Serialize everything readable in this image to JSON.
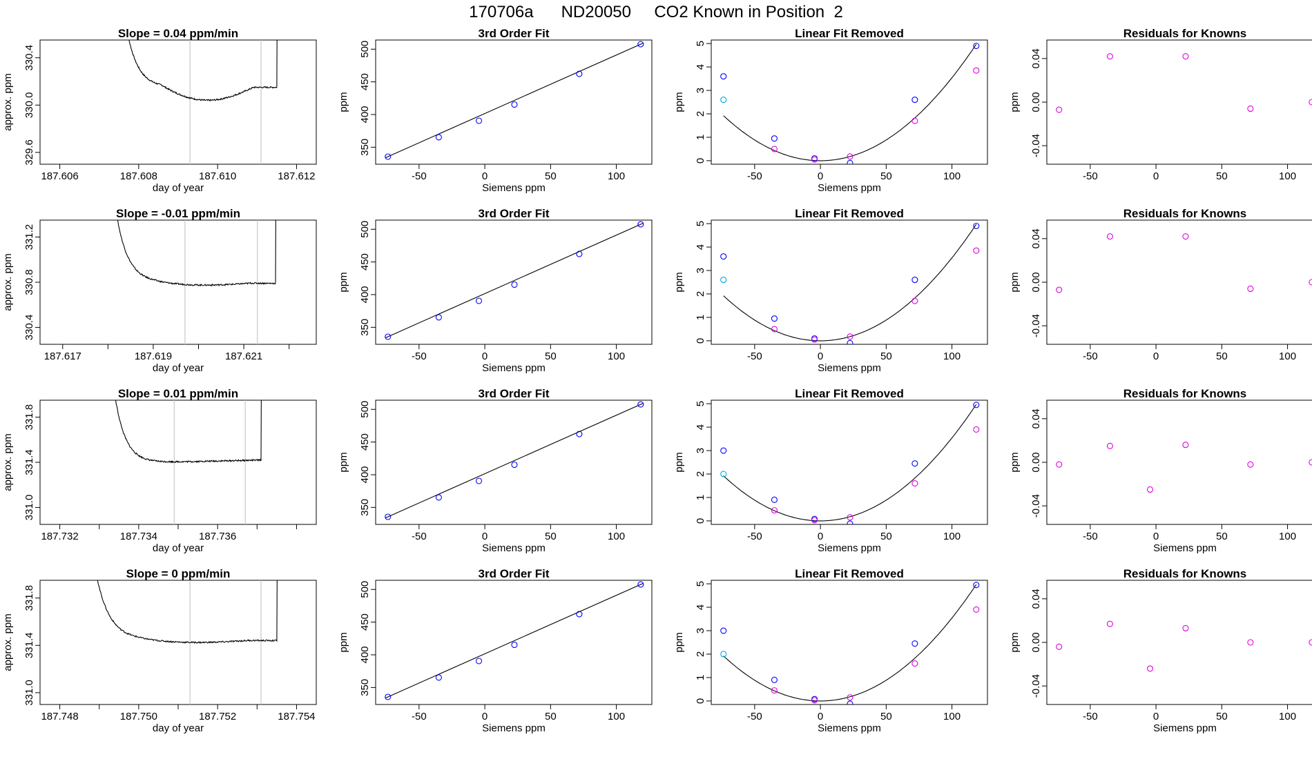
{
  "title": "170706a      ND20050     CO2 Known in Position  2",
  "colors": {
    "axis": "#000000",
    "trace": "#000000",
    "vline": "#c8c8c8",
    "blue": "#0000ff",
    "magenta": "#dd00dd",
    "cyan": "#00a8e0",
    "red": "#ff0000"
  },
  "chart_data": [
    {
      "row": 0,
      "kind": "timeseries",
      "title": "Slope =  0.04  ppm/min",
      "xlabel": "day of year",
      "ylabel": "approx. ppm",
      "xlim": [
        187.6055,
        187.6125
      ],
      "ylim": [
        329.5,
        330.55
      ],
      "xticks": [
        187.606,
        187.608,
        187.61,
        187.612
      ],
      "xtick_labels": [
        "187.606",
        "187.608",
        "187.610",
        "187.612"
      ],
      "yticks": [
        329.6,
        330.0,
        330.4
      ],
      "ytick_labels": [
        "329.6",
        "330.0",
        "330.4"
      ],
      "vlines": [
        187.6093,
        187.6111
      ],
      "trace_start": 187.6076,
      "trace_stop_knee": 187.6115,
      "baseline_start": 330.15,
      "baseline_end": 330.15,
      "dip": 330.04
    },
    {
      "row": 1,
      "kind": "timeseries",
      "title": "Slope =  -0.01  ppm/min",
      "xlabel": "day of year",
      "ylabel": "approx. ppm",
      "xlim": [
        187.6165,
        187.6226
      ],
      "ylim": [
        330.25,
        331.35
      ],
      "xticks": [
        187.617,
        187.618,
        187.619,
        187.62,
        187.621,
        187.622
      ],
      "xtick_labels": [
        "187.617",
        "",
        "187.619",
        "",
        "187.621",
        ""
      ],
      "yticks": [
        330.4,
        330.8,
        331.2
      ],
      "ytick_labels": [
        "330.4",
        "330.8",
        "331.2"
      ],
      "vlines": [
        187.6197,
        187.6213
      ],
      "trace_start": 187.6181,
      "trace_stop_knee": 187.6217,
      "baseline_start": 330.8,
      "baseline_end": 330.79,
      "dip": 330.78
    },
    {
      "row": 2,
      "kind": "timeseries",
      "title": "Slope =  0.01  ppm/min",
      "xlabel": "day of year",
      "ylabel": "approx. ppm",
      "xlim": [
        187.7315,
        187.7385
      ],
      "ylim": [
        330.85,
        331.95
      ],
      "xticks": [
        187.732,
        187.733,
        187.734,
        187.735,
        187.736,
        187.737,
        187.738
      ],
      "xtick_labels": [
        "187.732",
        "",
        "187.734",
        "",
        "187.736",
        "",
        ""
      ],
      "yticks": [
        331.0,
        331.4,
        331.8
      ],
      "ytick_labels": [
        "331.0",
        "331.4",
        "331.8"
      ],
      "vlines": [
        187.7349,
        187.7367
      ],
      "trace_start": 187.7333,
      "trace_stop_knee": 187.7371,
      "baseline_start": 331.39,
      "baseline_end": 331.42,
      "dip": 331.39
    },
    {
      "row": 3,
      "kind": "timeseries",
      "title": "Slope =  0  ppm/min",
      "xlabel": "day of year",
      "ylabel": "approx. ppm",
      "xlim": [
        187.7475,
        187.7545
      ],
      "ylim": [
        330.9,
        331.95
      ],
      "xticks": [
        187.748,
        187.749,
        187.75,
        187.751,
        187.752,
        187.753,
        187.754
      ],
      "xtick_labels": [
        "187.748",
        "",
        "187.750",
        "",
        "187.752",
        "",
        "187.754"
      ],
      "yticks": [
        331.0,
        331.4,
        331.8
      ],
      "ytick_labels": [
        "331.0",
        "331.4",
        "331.8"
      ],
      "vlines": [
        187.7513,
        187.7531
      ],
      "trace_start": 187.7488,
      "trace_stop_knee": 187.7535,
      "baseline_start": 331.45,
      "baseline_end": 331.44,
      "dip": 331.43
    },
    {
      "row": 0,
      "kind": "fit",
      "title": "3rd Order Fit",
      "xlabel": "Siemens ppm",
      "ylabel": "ppm",
      "xlim": [
        -83,
        127
      ],
      "ylim": [
        324,
        514
      ],
      "xticks": [
        -50,
        0,
        50,
        100
      ],
      "yticks": [
        350,
        400,
        450,
        500
      ],
      "x": [
        -73.7,
        -35.0,
        -4.5,
        22.5,
        71.8,
        118.5
      ],
      "y": [
        335.6,
        365.2,
        390.5,
        415.3,
        462.2,
        507.6
      ]
    },
    {
      "row": 1,
      "kind": "fit",
      "title": "3rd Order Fit",
      "xlabel": "Siemens ppm",
      "ylabel": "ppm",
      "xlim": [
        -83,
        127
      ],
      "ylim": [
        324,
        514
      ],
      "xticks": [
        -50,
        0,
        50,
        100
      ],
      "yticks": [
        350,
        400,
        450,
        500
      ],
      "x": [
        -73.7,
        -35.0,
        -4.5,
        22.5,
        71.8,
        118.5
      ],
      "y": [
        335.6,
        365.2,
        390.5,
        415.3,
        462.2,
        507.6
      ]
    },
    {
      "row": 2,
      "kind": "fit",
      "title": "3rd Order Fit",
      "xlabel": "Siemens ppm",
      "ylabel": "ppm",
      "xlim": [
        -83,
        127
      ],
      "ylim": [
        324,
        514
      ],
      "xticks": [
        -50,
        0,
        50,
        100
      ],
      "yticks": [
        350,
        400,
        450,
        500
      ],
      "x": [
        -73.7,
        -35.0,
        -4.5,
        22.5,
        71.8,
        118.5
      ],
      "y": [
        335.6,
        365.2,
        390.5,
        415.3,
        462.2,
        507.6
      ]
    },
    {
      "row": 3,
      "kind": "fit",
      "title": "3rd Order Fit",
      "xlabel": "Siemens ppm",
      "ylabel": "ppm",
      "xlim": [
        -83,
        127
      ],
      "ylim": [
        324,
        514
      ],
      "xticks": [
        -50,
        0,
        50,
        100
      ],
      "yticks": [
        350,
        400,
        450,
        500
      ],
      "x": [
        -73.7,
        -35.0,
        -4.5,
        22.5,
        71.8,
        118.5
      ],
      "y": [
        335.6,
        365.2,
        390.5,
        415.3,
        462.2,
        507.6
      ]
    },
    {
      "row": 0,
      "kind": "linfit",
      "title": "Linear Fit Removed",
      "xlabel": "Siemens ppm",
      "ylabel": "ppm",
      "xlim": [
        -83,
        127
      ],
      "ylim": [
        -0.15,
        5.15
      ],
      "xticks": [
        -50,
        0,
        50,
        100
      ],
      "yticks": [
        0,
        1,
        2,
        3,
        4,
        5
      ],
      "curve_a": 0.000354,
      "curve_c": 0.0,
      "blue": [
        [
          -73.7,
          3.6
        ],
        [
          -35.0,
          0.95
        ],
        [
          -4.5,
          0.1
        ],
        [
          22.5,
          -0.1
        ],
        [
          71.8,
          2.6
        ],
        [
          118.5,
          4.9
        ]
      ],
      "magenta": [
        [
          -35.0,
          0.5
        ],
        [
          -4.5,
          0.05
        ],
        [
          22.5,
          0.18
        ],
        [
          71.8,
          1.7
        ],
        [
          118.5,
          3.85
        ]
      ],
      "cyan": [
        [
          -73.7,
          2.6
        ]
      ]
    },
    {
      "row": 1,
      "kind": "linfit",
      "title": "Linear Fit Removed",
      "xlabel": "Siemens ppm",
      "ylabel": "ppm",
      "xlim": [
        -83,
        127
      ],
      "ylim": [
        -0.15,
        5.15
      ],
      "xticks": [
        -50,
        0,
        50,
        100
      ],
      "yticks": [
        0,
        1,
        2,
        3,
        4,
        5
      ],
      "curve_a": 0.000354,
      "curve_c": 0.0,
      "blue": [
        [
          -73.7,
          3.6
        ],
        [
          -35.0,
          0.95
        ],
        [
          -4.5,
          0.1
        ],
        [
          22.5,
          -0.1
        ],
        [
          71.8,
          2.6
        ],
        [
          118.5,
          4.9
        ]
      ],
      "magenta": [
        [
          -35.0,
          0.5
        ],
        [
          -4.5,
          0.05
        ],
        [
          22.5,
          0.18
        ],
        [
          71.8,
          1.7
        ],
        [
          118.5,
          3.85
        ]
      ],
      "cyan": [
        [
          -73.7,
          2.6
        ]
      ]
    },
    {
      "row": 2,
      "kind": "linfit",
      "title": "Linear Fit Removed",
      "xlabel": "Siemens ppm",
      "ylabel": "ppm",
      "xlim": [
        -83,
        127
      ],
      "ylim": [
        -0.15,
        5.15
      ],
      "xticks": [
        -50,
        0,
        50,
        100
      ],
      "yticks": [
        0,
        1,
        2,
        3,
        4,
        5
      ],
      "curve_a": 0.000354,
      "curve_c": 0.0,
      "blue": [
        [
          -73.7,
          3.0
        ],
        [
          -35.0,
          0.9
        ],
        [
          -4.5,
          0.08
        ],
        [
          22.5,
          -0.12
        ],
        [
          71.8,
          2.45
        ],
        [
          118.5,
          4.95
        ]
      ],
      "magenta": [
        [
          -35.0,
          0.45
        ],
        [
          -4.5,
          0.03
        ],
        [
          22.5,
          0.15
        ],
        [
          71.8,
          1.6
        ],
        [
          118.5,
          3.9
        ]
      ],
      "cyan": [
        [
          -73.7,
          2.0
        ]
      ]
    },
    {
      "row": 3,
      "kind": "linfit",
      "title": "Linear Fit Removed",
      "xlabel": "Siemens ppm",
      "ylabel": "ppm",
      "xlim": [
        -83,
        127
      ],
      "ylim": [
        -0.15,
        5.15
      ],
      "xticks": [
        -50,
        0,
        50,
        100
      ],
      "yticks": [
        0,
        1,
        2,
        3,
        4,
        5
      ],
      "curve_a": 0.000354,
      "curve_c": 0.0,
      "blue": [
        [
          -73.7,
          3.0
        ],
        [
          -35.0,
          0.9
        ],
        [
          -4.5,
          0.08
        ],
        [
          22.5,
          -0.12
        ],
        [
          71.8,
          2.45
        ],
        [
          118.5,
          4.95
        ]
      ],
      "magenta": [
        [
          -35.0,
          0.45
        ],
        [
          -4.5,
          0.03
        ],
        [
          22.5,
          0.15
        ],
        [
          71.8,
          1.6
        ],
        [
          118.5,
          3.9
        ]
      ],
      "cyan": [
        [
          -73.7,
          2.0
        ]
      ]
    },
    {
      "row": 0,
      "kind": "resid",
      "title": "Residuals for Knowns",
      "xlabel": "",
      "ylabel": "ppm",
      "xlim": [
        -83,
        127
      ],
      "ylim": [
        -0.057,
        0.057
      ],
      "xticks": [
        -50,
        0,
        50,
        100
      ],
      "yticks": [
        -0.04,
        0.0,
        0.04
      ],
      "x": [
        -73.7,
        -35.0,
        22.5,
        71.8,
        118.5
      ],
      "y": [
        -0.007,
        0.042,
        0.042,
        -0.006,
        0.0
      ]
    },
    {
      "row": 1,
      "kind": "resid",
      "title": "Residuals for Knowns",
      "xlabel": "",
      "ylabel": "ppm",
      "xlim": [
        -83,
        127
      ],
      "ylim": [
        -0.057,
        0.057
      ],
      "xticks": [
        -50,
        0,
        50,
        100
      ],
      "yticks": [
        -0.04,
        0.0,
        0.04
      ],
      "x": [
        -73.7,
        -35.0,
        22.5,
        71.8,
        118.5
      ],
      "y": [
        -0.007,
        0.042,
        0.042,
        -0.006,
        0.0
      ]
    },
    {
      "row": 2,
      "kind": "resid",
      "title": "Residuals for Knowns",
      "xlabel": "Siemens ppm",
      "ylabel": "ppm",
      "xlim": [
        -83,
        127
      ],
      "ylim": [
        -0.057,
        0.057
      ],
      "xticks": [
        -50,
        0,
        50,
        100
      ],
      "yticks": [
        -0.04,
        0.0,
        0.04
      ],
      "x": [
        -73.7,
        -35.0,
        -4.5,
        22.5,
        71.8,
        118.5
      ],
      "y": [
        -0.002,
        0.015,
        -0.025,
        0.016,
        -0.002,
        0.0
      ]
    },
    {
      "row": 3,
      "kind": "resid",
      "title": "Residuals for Knowns",
      "xlabel": "Siemens ppm",
      "ylabel": "ppm",
      "xlim": [
        -83,
        127
      ],
      "ylim": [
        -0.057,
        0.057
      ],
      "xticks": [
        -50,
        0,
        50,
        100
      ],
      "yticks": [
        -0.04,
        0.0,
        0.04
      ],
      "x": [
        -73.7,
        -35.0,
        -4.5,
        22.5,
        71.8,
        118.5
      ],
      "y": [
        -0.004,
        0.017,
        -0.024,
        0.013,
        0.0,
        0.0
      ]
    }
  ]
}
